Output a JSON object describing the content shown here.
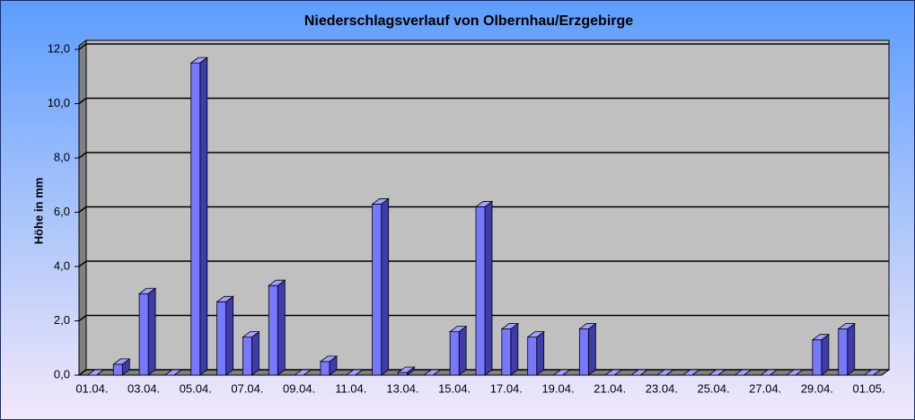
{
  "chart_data": {
    "type": "bar3d",
    "title": "Niederschlagsverlauf von Olbernhau/Erzgebirge",
    "y_label": "Höhe in  mm",
    "categories": [
      "01.04.",
      null,
      "03.04.",
      null,
      "05.04.",
      null,
      "07.04.",
      null,
      "09.04.",
      null,
      "11.04.",
      null,
      "13.04.",
      null,
      "15.04.",
      null,
      "17.04.",
      null,
      "19.04.",
      null,
      "21.04.",
      null,
      "23.04.",
      null,
      "25.04.",
      null,
      "27.04.",
      null,
      "29.04.",
      null,
      "01.05."
    ],
    "values": [
      0,
      0.4,
      3.0,
      0,
      11.5,
      2.7,
      1.4,
      3.3,
      0,
      0.5,
      0,
      6.3,
      0.1,
      0,
      1.6,
      6.2,
      1.7,
      1.4,
      0,
      1.7,
      0,
      0,
      0,
      0,
      0,
      0,
      0,
      0,
      1.3,
      1.7,
      0
    ],
    "color": "#7878ff",
    "ylim": [
      0,
      12
    ],
    "yticks": [
      {
        "value": 0,
        "label": "0,0"
      },
      {
        "value": 2,
        "label": "2,0"
      },
      {
        "value": 4,
        "label": "4,0"
      },
      {
        "value": 6,
        "label": "6,0"
      },
      {
        "value": 8,
        "label": "8,0"
      },
      {
        "value": 10,
        "label": "10,0"
      },
      {
        "value": 12,
        "label": "12,0"
      }
    ],
    "grid": true
  }
}
